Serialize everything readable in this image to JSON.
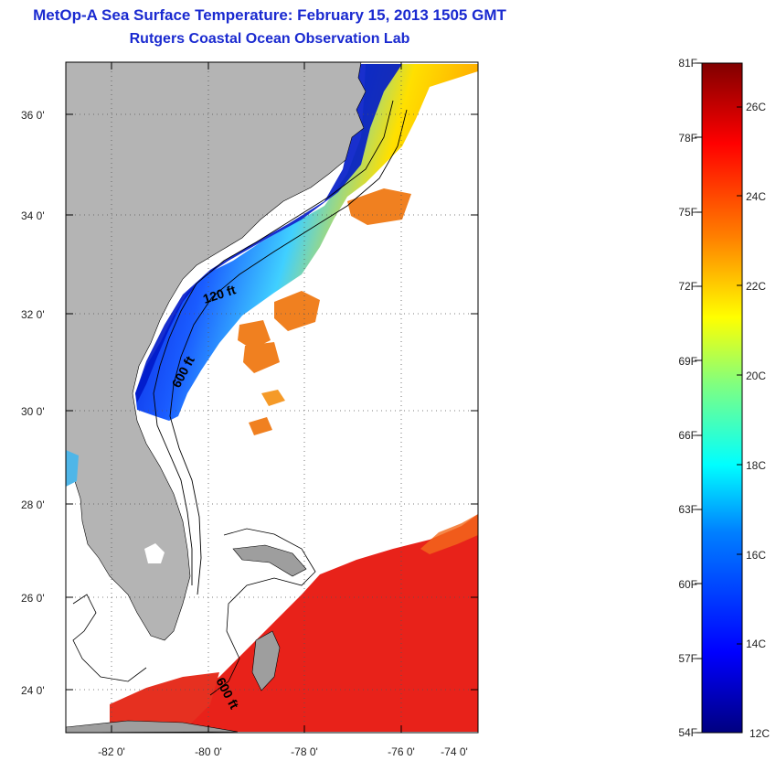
{
  "title": {
    "line1": "MetOp-A Sea Surface Temperature:  February 15, 2013 1505 GMT",
    "line2": "Rutgers Coastal Ocean Observation Lab"
  },
  "map": {
    "lon_labels": [
      "-82 0'",
      "-80 0'",
      "-78 0'",
      "-76 0'",
      "-74 0'"
    ],
    "lat_labels": [
      "36 0'",
      "34 0'",
      "32 0'",
      "30 0'",
      "28 0'",
      "26 0'",
      "24 0'"
    ],
    "contour_labels": [
      "120 ft",
      "600 ft",
      "600 ft"
    ],
    "colors": {
      "land": "#b4b4b4",
      "cloud": "#ffffff",
      "coastline": "#000000"
    }
  },
  "colorbar": {
    "fahrenheit_labels": [
      "81F",
      "78F",
      "75F",
      "72F",
      "69F",
      "66F",
      "63F",
      "60F",
      "57F",
      "54F"
    ],
    "celsius_labels": [
      "26C",
      "24C",
      "22C",
      "20C",
      "18C",
      "16C",
      "14C",
      "12C"
    ],
    "range_f": [
      54,
      81
    ],
    "range_c": [
      12,
      27
    ],
    "colormap": [
      "#000080",
      "#0000ff",
      "#0080ff",
      "#00ffff",
      "#80ff80",
      "#ffff00",
      "#ff8000",
      "#ff0000",
      "#800000"
    ]
  }
}
